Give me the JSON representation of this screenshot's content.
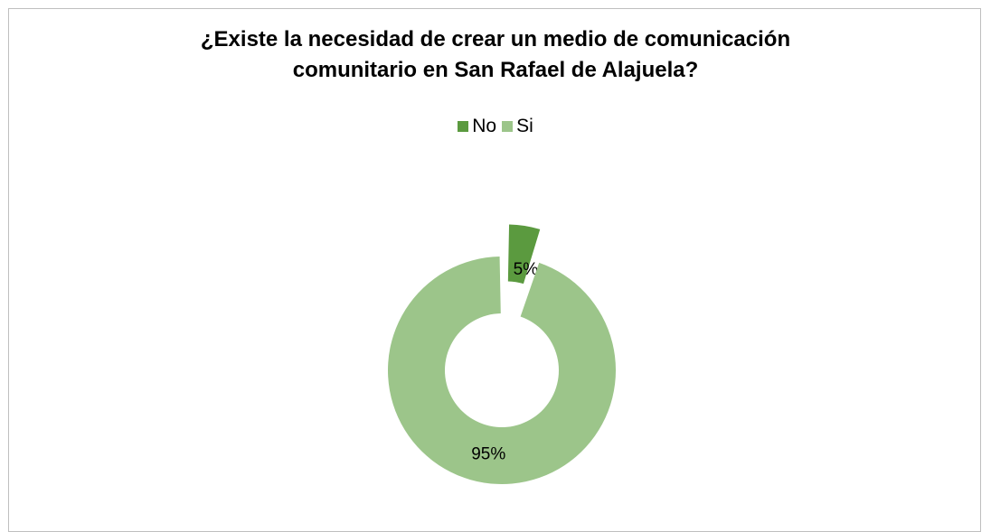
{
  "chart_data": {
    "type": "pie",
    "style": "doughnut, exploded",
    "title": "¿Existe la necesidad de crear un medio de comunicación comunitario en San Rafael de Alajuela?",
    "title_lines": [
      "¿Existe la necesidad de crear un medio de comunicación",
      "comunitario en San Rafael de Alajuela?"
    ],
    "legend_position": "top",
    "slices": [
      {
        "name": "No",
        "value": 5,
        "label": "5%",
        "color": "#5b9a3f"
      },
      {
        "name": "Si",
        "value": 95,
        "label": "95%",
        "color": "#9cc58a"
      }
    ]
  }
}
